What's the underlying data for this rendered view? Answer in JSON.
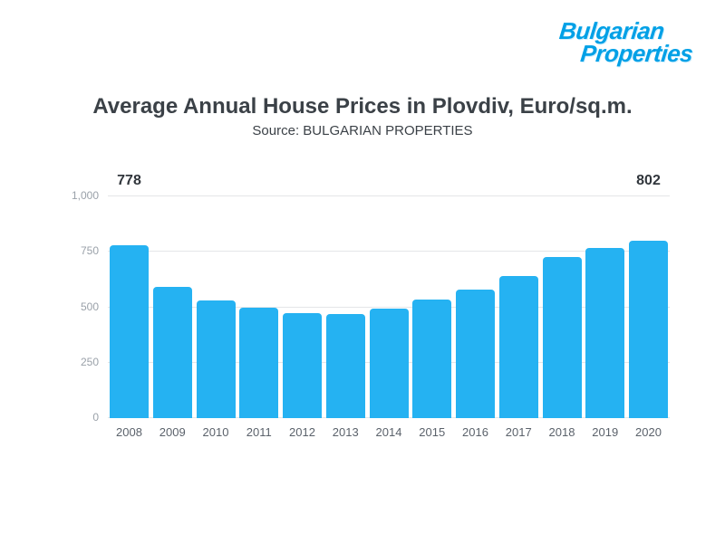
{
  "logo": {
    "line1": "Bulgarian",
    "line2": "Properties",
    "color": "#00a0e6"
  },
  "header": {
    "title": "Average Annual House Prices in Plovdiv, Euro/sq.m.",
    "subtitle": "Source: BULGARIAN PROPERTIES"
  },
  "chart_data": {
    "type": "bar",
    "title": "Average Annual House Prices in Plovdiv, Euro/sq.m.",
    "subtitle": "Source: BULGARIAN PROPERTIES",
    "categories": [
      "2008",
      "2009",
      "2010",
      "2011",
      "2012",
      "2013",
      "2014",
      "2015",
      "2016",
      "2017",
      "2018",
      "2019",
      "2020"
    ],
    "values": [
      778,
      590,
      530,
      497,
      475,
      470,
      492,
      535,
      578,
      640,
      725,
      767,
      802
    ],
    "value_labels": [
      {
        "index": 0,
        "text": "778"
      },
      {
        "index": 12,
        "text": "802"
      }
    ],
    "xlabel": "",
    "ylabel": "",
    "ylim": [
      0,
      1000
    ],
    "ytick_values": [
      0,
      250,
      500,
      750,
      1000
    ],
    "ytick_labels": [
      "0",
      "250",
      "500",
      "750",
      "1,000"
    ],
    "grid": true,
    "legend": false,
    "bar_color": "#25b2f2"
  }
}
